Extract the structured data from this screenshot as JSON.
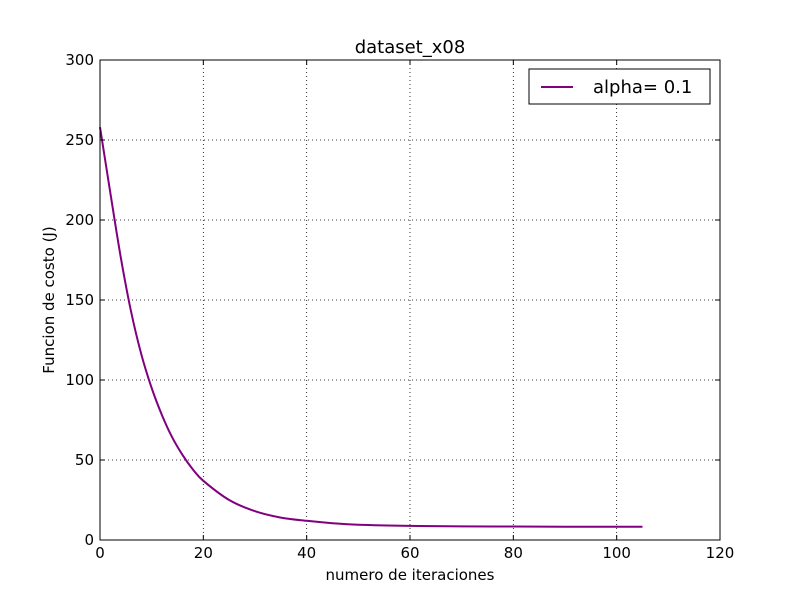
{
  "chart_data": {
    "type": "line",
    "title": "dataset_x08",
    "xlabel": "numero de iteraciones",
    "ylabel": "Funcion de costo (J)",
    "xlim": [
      0,
      120
    ],
    "ylim": [
      0,
      300
    ],
    "x_ticks": [
      0,
      20,
      40,
      60,
      80,
      100,
      120
    ],
    "y_ticks": [
      0,
      50,
      100,
      150,
      200,
      250,
      300
    ],
    "x_tick_labels": [
      "0",
      "20",
      "40",
      "60",
      "80",
      "100",
      "120"
    ],
    "y_tick_labels": [
      "0",
      "50",
      "100",
      "150",
      "200",
      "250",
      "300"
    ],
    "grid": true,
    "legend_position": "top-right",
    "series": [
      {
        "name": "alpha= 0.1",
        "color": "#800080",
        "x": [
          0,
          2,
          4,
          6,
          8,
          10,
          12,
          14,
          16,
          18,
          20,
          25,
          30,
          35,
          40,
          45,
          50,
          60,
          70,
          80,
          90,
          100,
          105
        ],
        "y": [
          258,
          217,
          177,
          143,
          116,
          95,
          78,
          64,
          53,
          44,
          37,
          25,
          18,
          14,
          12,
          10.5,
          9.5,
          8.8,
          8.5,
          8.4,
          8.3,
          8.3,
          8.3
        ]
      }
    ]
  }
}
